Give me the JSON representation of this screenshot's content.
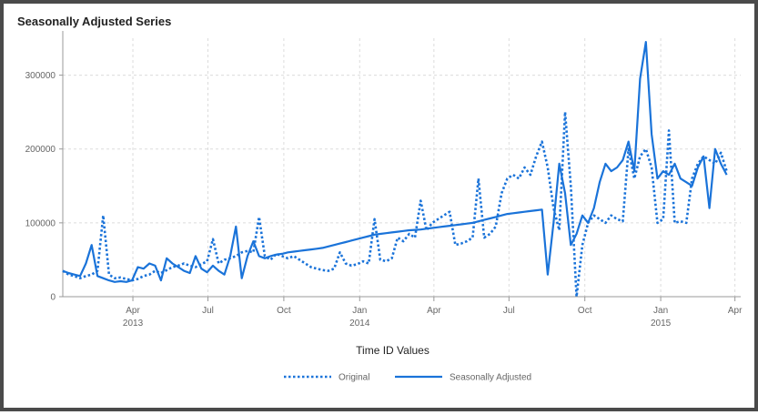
{
  "chart_data": {
    "type": "line",
    "title": "Seasonally Adjusted Series",
    "xlabel": "Time ID Values",
    "ylabel": "",
    "ylim": [
      0,
      350000
    ],
    "y_ticks": [
      0,
      100000,
      200000,
      300000
    ],
    "y_tick_labels": [
      "0",
      "100000",
      "200000",
      "300000"
    ],
    "x_ticks": [
      {
        "date": "2013-04-01",
        "label": "Apr",
        "year": "2013"
      },
      {
        "date": "2013-07-01",
        "label": "Jul",
        "year": ""
      },
      {
        "date": "2013-10-01",
        "label": "Oct",
        "year": ""
      },
      {
        "date": "2014-01-01",
        "label": "Jan",
        "year": "2014"
      },
      {
        "date": "2014-04-01",
        "label": "Apr",
        "year": ""
      },
      {
        "date": "2014-07-01",
        "label": "Jul",
        "year": ""
      },
      {
        "date": "2014-10-01",
        "label": "Oct",
        "year": ""
      },
      {
        "date": "2015-01-01",
        "label": "Jan",
        "year": "2015"
      },
      {
        "date": "2015-04-01",
        "label": "Apr",
        "year": ""
      }
    ],
    "xlim": [
      "2013-01-06",
      "2015-04-08"
    ],
    "grid": true,
    "legend_position": "bottom",
    "series": [
      {
        "name": "Original",
        "style": "dotted",
        "color": "#1a73d9",
        "points": [
          [
            "2013-01-06",
            35000
          ],
          [
            "2013-01-13",
            30000
          ],
          [
            "2013-01-20",
            28000
          ],
          [
            "2013-01-27",
            25000
          ],
          [
            "2013-02-03",
            28000
          ],
          [
            "2013-02-10",
            30000
          ],
          [
            "2013-02-17",
            35000
          ],
          [
            "2013-02-24",
            110000
          ],
          [
            "2013-03-03",
            30000
          ],
          [
            "2013-03-10",
            25000
          ],
          [
            "2013-03-17",
            26000
          ],
          [
            "2013-03-24",
            24000
          ],
          [
            "2013-03-31",
            22000
          ],
          [
            "2013-04-07",
            24000
          ],
          [
            "2013-04-14",
            28000
          ],
          [
            "2013-04-21",
            30000
          ],
          [
            "2013-04-28",
            35000
          ],
          [
            "2013-05-05",
            32000
          ],
          [
            "2013-05-12",
            36000
          ],
          [
            "2013-05-19",
            40000
          ],
          [
            "2013-05-26",
            42000
          ],
          [
            "2013-06-02",
            45000
          ],
          [
            "2013-06-09",
            42000
          ],
          [
            "2013-06-16",
            40000
          ],
          [
            "2013-06-23",
            44000
          ],
          [
            "2013-06-30",
            48000
          ],
          [
            "2013-07-07",
            78000
          ],
          [
            "2013-07-14",
            45000
          ],
          [
            "2013-07-21",
            50000
          ],
          [
            "2013-07-28",
            52000
          ],
          [
            "2013-08-04",
            55000
          ],
          [
            "2013-08-11",
            60000
          ],
          [
            "2013-08-18",
            62000
          ],
          [
            "2013-08-25",
            60000
          ],
          [
            "2013-09-01",
            108000
          ],
          [
            "2013-09-08",
            55000
          ],
          [
            "2013-09-15",
            50000
          ],
          [
            "2013-09-22",
            58000
          ],
          [
            "2013-09-29",
            55000
          ],
          [
            "2013-10-06",
            52000
          ],
          [
            "2013-10-13",
            55000
          ],
          [
            "2013-10-20",
            50000
          ],
          [
            "2013-10-27",
            45000
          ],
          [
            "2013-11-03",
            40000
          ],
          [
            "2013-11-10",
            38000
          ],
          [
            "2013-11-17",
            36000
          ],
          [
            "2013-11-24",
            35000
          ],
          [
            "2013-12-01",
            38000
          ],
          [
            "2013-12-08",
            60000
          ],
          [
            "2013-12-15",
            45000
          ],
          [
            "2013-12-22",
            42000
          ],
          [
            "2013-12-29",
            44000
          ],
          [
            "2014-01-05",
            48000
          ],
          [
            "2014-01-12",
            45000
          ],
          [
            "2014-01-19",
            105000
          ],
          [
            "2014-01-26",
            50000
          ],
          [
            "2014-02-02",
            48000
          ],
          [
            "2014-02-09",
            52000
          ],
          [
            "2014-02-16",
            80000
          ],
          [
            "2014-02-23",
            75000
          ],
          [
            "2014-03-02",
            85000
          ],
          [
            "2014-03-09",
            80000
          ],
          [
            "2014-03-16",
            130000
          ],
          [
            "2014-03-23",
            90000
          ],
          [
            "2014-03-30",
            100000
          ],
          [
            "2014-04-06",
            105000
          ],
          [
            "2014-04-13",
            110000
          ],
          [
            "2014-04-20",
            115000
          ],
          [
            "2014-04-27",
            70000
          ],
          [
            "2014-05-04",
            72000
          ],
          [
            "2014-05-11",
            75000
          ],
          [
            "2014-05-18",
            80000
          ],
          [
            "2014-05-25",
            160000
          ],
          [
            "2014-06-01",
            80000
          ],
          [
            "2014-06-08",
            85000
          ],
          [
            "2014-06-15",
            95000
          ],
          [
            "2014-06-22",
            140000
          ],
          [
            "2014-06-29",
            160000
          ],
          [
            "2014-07-06",
            165000
          ],
          [
            "2014-07-13",
            160000
          ],
          [
            "2014-07-20",
            175000
          ],
          [
            "2014-07-27",
            165000
          ],
          [
            "2014-08-03",
            190000
          ],
          [
            "2014-08-10",
            210000
          ],
          [
            "2014-08-17",
            175000
          ],
          [
            "2014-08-24",
            120000
          ],
          [
            "2014-08-31",
            90000
          ],
          [
            "2014-09-07",
            250000
          ],
          [
            "2014-09-14",
            150000
          ],
          [
            "2014-09-21",
            0
          ],
          [
            "2014-09-28",
            70000
          ],
          [
            "2014-10-05",
            100000
          ],
          [
            "2014-10-12",
            110000
          ],
          [
            "2014-10-19",
            105000
          ],
          [
            "2014-10-26",
            100000
          ],
          [
            "2014-11-02",
            110000
          ],
          [
            "2014-11-09",
            105000
          ],
          [
            "2014-11-16",
            102000
          ],
          [
            "2014-11-23",
            200000
          ],
          [
            "2014-11-30",
            160000
          ],
          [
            "2014-12-07",
            190000
          ],
          [
            "2014-12-14",
            200000
          ],
          [
            "2014-12-21",
            175000
          ],
          [
            "2014-12-28",
            100000
          ],
          [
            "2015-01-04",
            105000
          ],
          [
            "2015-01-11",
            225000
          ],
          [
            "2015-01-18",
            100000
          ],
          [
            "2015-01-25",
            102000
          ],
          [
            "2015-02-01",
            100000
          ],
          [
            "2015-02-08",
            160000
          ],
          [
            "2015-02-15",
            180000
          ],
          [
            "2015-02-22",
            190000
          ],
          [
            "2015-03-01",
            185000
          ],
          [
            "2015-03-08",
            180000
          ],
          [
            "2015-03-15",
            195000
          ],
          [
            "2015-03-22",
            170000
          ]
        ]
      },
      {
        "name": "Seasonally Adjusted",
        "style": "solid",
        "color": "#1a73d9",
        "points": [
          [
            "2013-01-06",
            35000
          ],
          [
            "2013-01-13",
            32000
          ],
          [
            "2013-01-20",
            30000
          ],
          [
            "2013-01-27",
            28000
          ],
          [
            "2013-02-03",
            45000
          ],
          [
            "2013-02-10",
            70000
          ],
          [
            "2013-02-17",
            28000
          ],
          [
            "2013-02-24",
            25000
          ],
          [
            "2013-03-03",
            22000
          ],
          [
            "2013-03-10",
            20000
          ],
          [
            "2013-03-17",
            21000
          ],
          [
            "2013-03-24",
            20000
          ],
          [
            "2013-03-31",
            22000
          ],
          [
            "2013-04-07",
            40000
          ],
          [
            "2013-04-14",
            38000
          ],
          [
            "2013-04-21",
            45000
          ],
          [
            "2013-04-28",
            42000
          ],
          [
            "2013-05-05",
            22000
          ],
          [
            "2013-05-12",
            52000
          ],
          [
            "2013-05-19",
            45000
          ],
          [
            "2013-05-26",
            40000
          ],
          [
            "2013-06-02",
            35000
          ],
          [
            "2013-06-09",
            32000
          ],
          [
            "2013-06-16",
            55000
          ],
          [
            "2013-06-23",
            38000
          ],
          [
            "2013-06-30",
            33000
          ],
          [
            "2013-07-07",
            42000
          ],
          [
            "2013-07-14",
            35000
          ],
          [
            "2013-07-21",
            30000
          ],
          [
            "2013-07-28",
            55000
          ],
          [
            "2013-08-04",
            95000
          ],
          [
            "2013-08-11",
            25000
          ],
          [
            "2013-08-18",
            55000
          ],
          [
            "2013-08-25",
            75000
          ],
          [
            "2013-09-01",
            55000
          ],
          [
            "2013-09-08",
            52000
          ],
          [
            "2013-09-15",
            55000
          ],
          [
            "2013-09-22",
            57000
          ],
          [
            "2013-09-29",
            58000
          ],
          [
            "2013-10-06",
            60000
          ],
          [
            "2013-10-13",
            61000
          ],
          [
            "2013-10-20",
            62000
          ],
          [
            "2013-10-27",
            63000
          ],
          [
            "2013-11-03",
            64000
          ],
          [
            "2013-11-10",
            65000
          ],
          [
            "2013-11-17",
            66000
          ],
          [
            "2013-11-24",
            68000
          ],
          [
            "2013-12-01",
            70000
          ],
          [
            "2013-12-08",
            72000
          ],
          [
            "2013-12-15",
            74000
          ],
          [
            "2013-12-22",
            76000
          ],
          [
            "2013-12-29",
            78000
          ],
          [
            "2014-01-05",
            80000
          ],
          [
            "2014-01-12",
            82000
          ],
          [
            "2014-01-19",
            84000
          ],
          [
            "2014-01-26",
            85000
          ],
          [
            "2014-02-02",
            86000
          ],
          [
            "2014-02-09",
            87000
          ],
          [
            "2014-02-16",
            88000
          ],
          [
            "2014-02-23",
            89000
          ],
          [
            "2014-03-02",
            90000
          ],
          [
            "2014-03-09",
            90500
          ],
          [
            "2014-03-16",
            91000
          ],
          [
            "2014-03-23",
            92000
          ],
          [
            "2014-03-30",
            93000
          ],
          [
            "2014-04-06",
            94000
          ],
          [
            "2014-04-13",
            95000
          ],
          [
            "2014-04-20",
            96000
          ],
          [
            "2014-04-27",
            97000
          ],
          [
            "2014-05-04",
            98000
          ],
          [
            "2014-05-11",
            99000
          ],
          [
            "2014-05-18",
            100000
          ],
          [
            "2014-05-25",
            102000
          ],
          [
            "2014-06-01",
            104000
          ],
          [
            "2014-06-08",
            106000
          ],
          [
            "2014-06-15",
            108000
          ],
          [
            "2014-06-22",
            110000
          ],
          [
            "2014-06-29",
            112000
          ],
          [
            "2014-07-06",
            113000
          ],
          [
            "2014-07-13",
            114000
          ],
          [
            "2014-07-20",
            115000
          ],
          [
            "2014-07-27",
            116000
          ],
          [
            "2014-08-03",
            117000
          ],
          [
            "2014-08-10",
            118000
          ],
          [
            "2014-08-17",
            30000
          ],
          [
            "2014-08-24",
            100000
          ],
          [
            "2014-08-31",
            180000
          ],
          [
            "2014-09-07",
            140000
          ],
          [
            "2014-09-14",
            70000
          ],
          [
            "2014-09-21",
            85000
          ],
          [
            "2014-09-28",
            110000
          ],
          [
            "2014-10-05",
            100000
          ],
          [
            "2014-10-12",
            120000
          ],
          [
            "2014-10-19",
            155000
          ],
          [
            "2014-10-26",
            180000
          ],
          [
            "2014-11-02",
            170000
          ],
          [
            "2014-11-09",
            175000
          ],
          [
            "2014-11-16",
            185000
          ],
          [
            "2014-11-23",
            210000
          ],
          [
            "2014-11-30",
            170000
          ],
          [
            "2014-12-07",
            295000
          ],
          [
            "2014-12-14",
            345000
          ],
          [
            "2014-12-21",
            220000
          ],
          [
            "2014-12-28",
            160000
          ],
          [
            "2015-01-04",
            170000
          ],
          [
            "2015-01-11",
            165000
          ],
          [
            "2015-01-18",
            180000
          ],
          [
            "2015-01-25",
            160000
          ],
          [
            "2015-02-01",
            155000
          ],
          [
            "2015-02-08",
            150000
          ],
          [
            "2015-02-15",
            175000
          ],
          [
            "2015-02-22",
            190000
          ],
          [
            "2015-03-01",
            120000
          ],
          [
            "2015-03-08",
            200000
          ],
          [
            "2015-03-15",
            180000
          ],
          [
            "2015-03-22",
            165000
          ]
        ]
      }
    ]
  }
}
